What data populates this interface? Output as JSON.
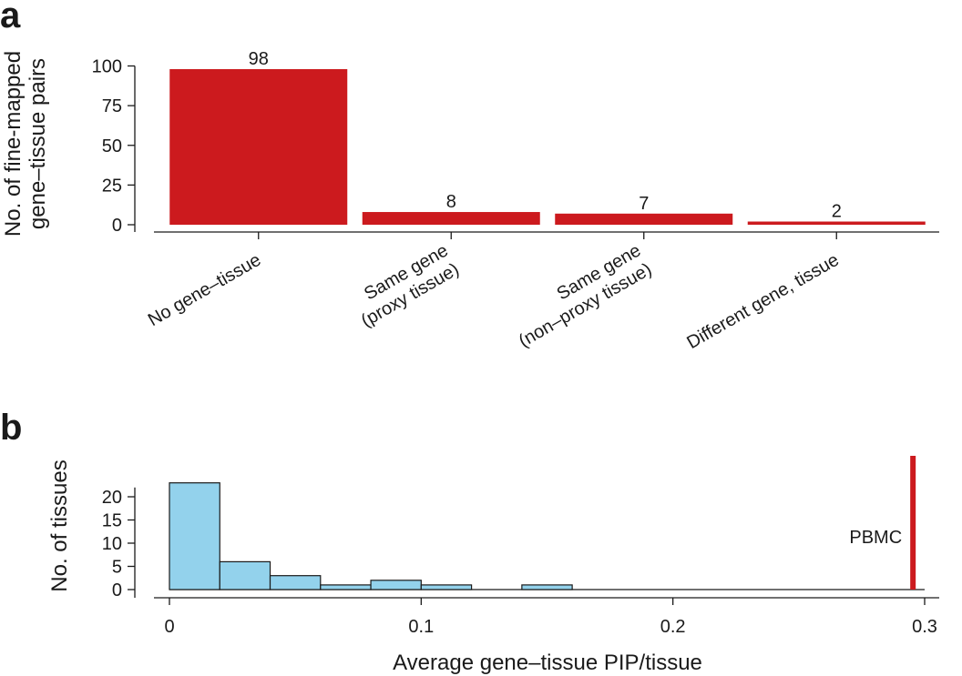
{
  "panels": [
    {
      "letter": "a",
      "chart_data": {
        "type": "bar",
        "categories": [
          [
            "No gene–tissue"
          ],
          [
            "Same gene",
            "(proxy tissue)"
          ],
          [
            "Same gene",
            "(non–proxy tissue)"
          ],
          [
            "Different gene, tissue"
          ]
        ],
        "values": [
          98,
          8,
          7,
          2
        ],
        "data_labels": [
          "98",
          "8",
          "7",
          "2"
        ],
        "ylabel": [
          "No. of fine-mapped",
          "gene–tissue pairs"
        ],
        "ylim": [
          0,
          110
        ],
        "yticks": [
          0,
          25,
          50,
          75,
          100
        ],
        "bar_color": "#cc1a1e"
      }
    },
    {
      "letter": "b",
      "chart_data": {
        "type": "histogram",
        "bins": [
          {
            "x0": 0.0,
            "x1": 0.02,
            "count": 23
          },
          {
            "x0": 0.02,
            "x1": 0.04,
            "count": 6
          },
          {
            "x0": 0.04,
            "x1": 0.06,
            "count": 3
          },
          {
            "x0": 0.06,
            "x1": 0.08,
            "count": 1
          },
          {
            "x0": 0.08,
            "x1": 0.1,
            "count": 2
          },
          {
            "x0": 0.1,
            "x1": 0.12,
            "count": 1
          },
          {
            "x0": 0.12,
            "x1": 0.14,
            "count": 0
          },
          {
            "x0": 0.14,
            "x1": 0.16,
            "count": 1
          }
        ],
        "xlabel": "Average gene–tissue PIP/tissue",
        "ylabel": "No. of tissues",
        "xlim": [
          0,
          0.3
        ],
        "ylim": [
          0,
          24
        ],
        "xticks": [
          0,
          0.1,
          0.2,
          0.3
        ],
        "xtick_labels": [
          "0",
          "0.1",
          "0.2",
          "0.3"
        ],
        "yticks": [
          0,
          5,
          10,
          15,
          20
        ],
        "marker": {
          "label": "PBMC",
          "x": 0.295
        },
        "bar_color": "#93d2ec",
        "marker_color": "#cc1a1e"
      }
    }
  ]
}
